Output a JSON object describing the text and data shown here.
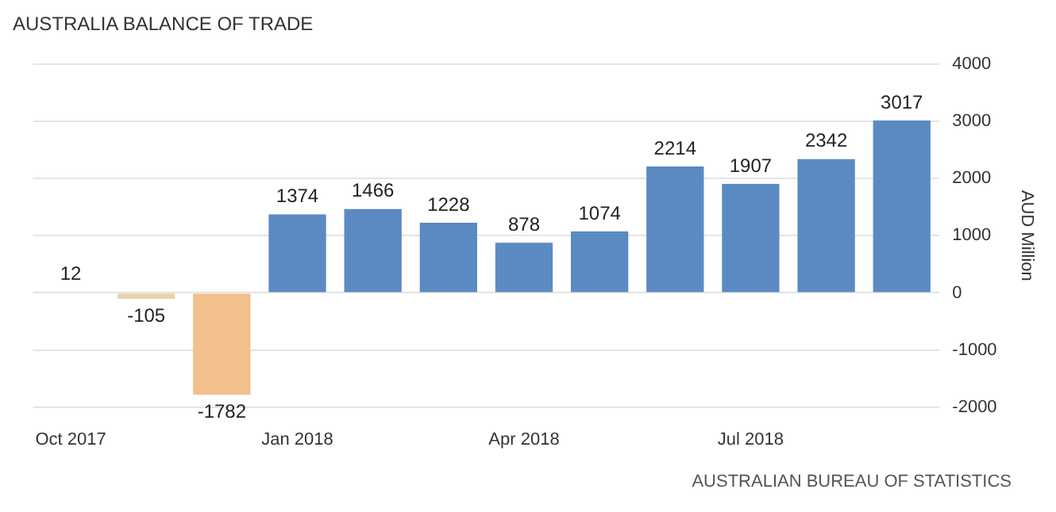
{
  "chart_data": {
    "type": "bar",
    "title": "AUSTRALIA BALANCE OF TRADE",
    "ylabel": "AUD Million",
    "categories": [
      "Oct 2017",
      null,
      null,
      "Jan 2018",
      null,
      null,
      "Apr 2018",
      null,
      null,
      "Jul 2018",
      null,
      null
    ],
    "values": [
      12,
      -105,
      -1782,
      1374,
      1466,
      1228,
      878,
      1074,
      2214,
      1907,
      2342,
      3017
    ],
    "colors": [
      "#333333",
      "#e6d3a8",
      "#f2c08a",
      "#5b8ac3",
      "#5b8ac3",
      "#5b8ac3",
      "#5b8ac3",
      "#5b8ac3",
      "#5b8ac3",
      "#5b8ac3",
      "#5b8ac3",
      "#5b8ac3"
    ],
    "ylim": [
      -2000,
      4000
    ],
    "yticks": [
      -2000,
      -1000,
      0,
      1000,
      2000,
      3000,
      4000
    ],
    "grid": "y",
    "data_labels": true,
    "legend": false,
    "annotations": [
      "AUSTRALIAN BUREAU OF STATISTICS"
    ]
  }
}
